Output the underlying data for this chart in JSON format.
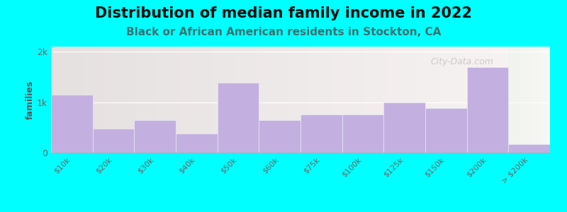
{
  "title": "Distribution of median family income in 2022",
  "subtitle": "Black or African American residents in Stockton, CA",
  "ylabel": "families",
  "categories": [
    "$10k",
    "$20k",
    "$30k",
    "$40k",
    "$50k",
    "$60k",
    "$75k",
    "$100k",
    "$125k",
    "$150k",
    "$200k",
    "> $200k"
  ],
  "values": [
    1150,
    480,
    650,
    380,
    1380,
    650,
    750,
    750,
    1000,
    880,
    1700,
    170
  ],
  "bar_color": "#c4b0e0",
  "bar_edge_color": "#e8e8f8",
  "background_outer": "#00ffff",
  "background_plot_left": "#e8f5e2",
  "background_plot_right": "#f0f5ef",
  "title_fontsize": 15,
  "title_fontweight": "bold",
  "subtitle_fontsize": 11,
  "subtitle_color": "#3a7070",
  "ylabel_color": "#555555",
  "tick_label_color": "#666666",
  "ytick_labels": [
    "0",
    "1k",
    "2k"
  ],
  "ytick_values": [
    0,
    1000,
    2000
  ],
  "ylim": [
    0,
    2100
  ],
  "watermark": "City-Data.com",
  "split_index": 11
}
